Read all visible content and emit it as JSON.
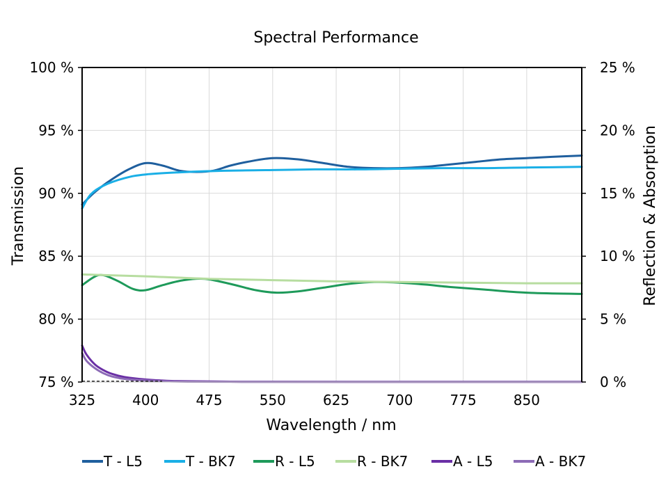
{
  "chart_data": {
    "type": "line",
    "title": "Spectral Performance",
    "xlabel": "Wavelength / nm",
    "ylabel_left": "Transmission",
    "ylabel_right": "Reflection & Absorption",
    "xlim": [
      325,
      915
    ],
    "xticks": [
      325,
      400,
      475,
      550,
      625,
      700,
      775,
      850
    ],
    "ylim_left": [
      75,
      100
    ],
    "yticks_left": [
      75,
      80,
      85,
      90,
      95,
      100
    ],
    "yticks_left_labels": [
      "75 %",
      "80 %",
      "85 %",
      "90 %",
      "95 %",
      "100 %"
    ],
    "ylim_right": [
      0,
      25
    ],
    "yticks_right": [
      0,
      5,
      10,
      15,
      20,
      25
    ],
    "yticks_right_labels": [
      "0 %",
      "5 %",
      "10 %",
      "15 %",
      "20 %",
      "25 %"
    ],
    "grid": true,
    "legend_position": "bottom",
    "series": [
      {
        "name": "T - L5",
        "axis": "left",
        "color": "#1F5F9E",
        "x": [
          325,
          340,
          360,
          380,
          400,
          420,
          440,
          460,
          480,
          500,
          520,
          550,
          580,
          610,
          640,
          670,
          700,
          730,
          760,
          790,
          820,
          850,
          880,
          915
        ],
        "y": [
          89.1,
          90.1,
          91.1,
          91.9,
          92.4,
          92.2,
          91.8,
          91.7,
          91.8,
          92.2,
          92.5,
          92.8,
          92.7,
          92.4,
          92.1,
          92.0,
          92.0,
          92.1,
          92.3,
          92.5,
          92.7,
          92.8,
          92.9,
          93.0
        ]
      },
      {
        "name": "T - BK7",
        "axis": "left",
        "color": "#1AAFE6",
        "x": [
          325,
          335,
          350,
          375,
          400,
          450,
          500,
          550,
          600,
          650,
          700,
          750,
          800,
          850,
          915
        ],
        "y": [
          88.8,
          89.9,
          90.6,
          91.2,
          91.5,
          91.7,
          91.8,
          91.85,
          91.9,
          91.9,
          91.95,
          92.0,
          92.0,
          92.05,
          92.1
        ]
      },
      {
        "name": "R - L5",
        "axis": "right",
        "color": "#1E9A5A",
        "x": [
          325,
          345,
          365,
          385,
          400,
          420,
          445,
          470,
          500,
          530,
          555,
          580,
          610,
          640,
          670,
          700,
          730,
          760,
          800,
          850,
          915
        ],
        "y": [
          7.7,
          8.5,
          8.1,
          7.4,
          7.3,
          7.7,
          8.1,
          8.2,
          7.8,
          7.3,
          7.1,
          7.2,
          7.5,
          7.8,
          7.95,
          7.9,
          7.75,
          7.55,
          7.35,
          7.1,
          7.0
        ]
      },
      {
        "name": "R - BK7",
        "axis": "right",
        "color": "#B7DDA0",
        "x": [
          325,
          400,
          475,
          550,
          625,
          700,
          775,
          850,
          915
        ],
        "y": [
          8.55,
          8.4,
          8.2,
          8.1,
          8.0,
          7.95,
          7.9,
          7.85,
          7.85
        ]
      },
      {
        "name": "A - L5",
        "axis": "right",
        "color": "#6A2FA5",
        "x": [
          325,
          330,
          340,
          350,
          360,
          375,
          400,
          425,
          450,
          500,
          550,
          700,
          915
        ],
        "y": [
          2.9,
          2.2,
          1.4,
          0.95,
          0.65,
          0.4,
          0.2,
          0.1,
          0.06,
          0.03,
          0.02,
          0.01,
          0.01
        ]
      },
      {
        "name": "A - BK7",
        "axis": "right",
        "color": "#8C6BB6",
        "x": [
          325,
          330,
          340,
          350,
          360,
          375,
          400,
          425,
          450,
          500,
          550,
          700,
          915
        ],
        "y": [
          2.3,
          1.7,
          1.1,
          0.7,
          0.45,
          0.25,
          0.12,
          0.06,
          0.03,
          0.02,
          0.01,
          0.01,
          0.01
        ]
      }
    ]
  }
}
